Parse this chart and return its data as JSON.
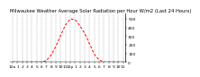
{
  "title": "Milwaukee Weather Average Solar Radiation per Hour W/m2 (Last 24 Hours)",
  "hours": [
    0,
    1,
    2,
    3,
    4,
    5,
    6,
    7,
    8,
    9,
    10,
    11,
    12,
    13,
    14,
    15,
    16,
    17,
    18,
    19,
    20,
    21,
    22,
    23
  ],
  "values": [
    0,
    0,
    0,
    0,
    0,
    0,
    0,
    15,
    80,
    180,
    310,
    430,
    500,
    490,
    420,
    330,
    210,
    90,
    20,
    0,
    0,
    0,
    0,
    0
  ],
  "line_color": "#ff0000",
  "bg_color": "#ffffff",
  "grid_color": "#888888",
  "ylim": [
    0,
    560
  ],
  "y_ticks": [
    0,
    100,
    200,
    300,
    400,
    500
  ],
  "x_tick_labels": [
    "12a",
    "1",
    "2",
    "3",
    "4",
    "5",
    "6",
    "7",
    "8",
    "9",
    "10",
    "11",
    "12p",
    "1",
    "2",
    "3",
    "4",
    "5",
    "6",
    "7",
    "8",
    "9",
    "10",
    "11"
  ],
  "title_fontsize": 3.8,
  "label_fontsize": 3.2
}
